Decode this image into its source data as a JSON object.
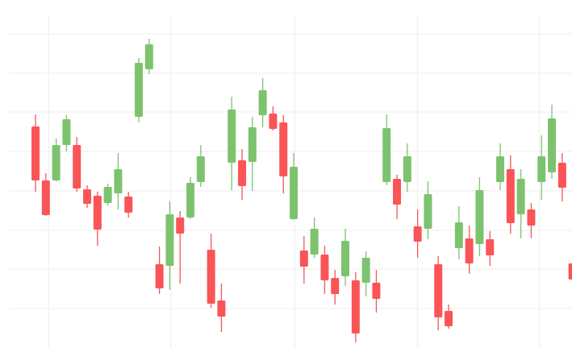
{
  "chart_data": {
    "type": "candlestick",
    "x": [
      0,
      1,
      2,
      3,
      4,
      5,
      6,
      7,
      8,
      9,
      10,
      11,
      12,
      13,
      14,
      15,
      16,
      17,
      18,
      19,
      20,
      21,
      22,
      23,
      24,
      25,
      26,
      27,
      28,
      29,
      30,
      31,
      32,
      33,
      34,
      35,
      36,
      37,
      38,
      39,
      40,
      41,
      42,
      43,
      44,
      45,
      46,
      47,
      48,
      49,
      50,
      51,
      52
    ],
    "open": [
      275,
      208,
      208,
      252,
      252,
      197,
      189,
      180,
      192,
      188,
      287,
      346,
      104,
      102,
      162,
      162,
      206,
      122,
      59,
      230,
      233,
      231,
      289,
      291,
      280,
      160,
      121,
      116,
      116,
      87,
      89,
      84,
      81,
      81,
      206,
      210,
      206,
      151,
      148,
      104,
      46,
      124,
      136,
      129,
      135,
      206,
      222,
      166,
      172,
      206,
      218,
      230,
      105
    ],
    "high": [
      290,
      217,
      260,
      289,
      262,
      202,
      194,
      204,
      242,
      194,
      360,
      384,
      126,
      182,
      170,
      212,
      252,
      142,
      80,
      312,
      247,
      287,
      335,
      300,
      289,
      242,
      139,
      162,
      127,
      97,
      148,
      94,
      120,
      97,
      290,
      215,
      254,
      172,
      207,
      114,
      54,
      176,
      152,
      212,
      145,
      254,
      239,
      222,
      180,
      264,
      302,
      242,
      110
    ],
    "low": [
      194,
      164,
      207,
      244,
      194,
      174,
      127,
      177,
      172,
      162,
      280,
      340,
      67,
      72,
      80,
      160,
      200,
      50,
      20,
      196,
      184,
      195,
      274,
      270,
      192,
      159,
      80,
      112,
      67,
      54,
      77,
      7,
      64,
      44,
      202,
      160,
      194,
      112,
      135,
      22,
      24,
      110,
      92,
      114,
      102,
      196,
      142,
      136,
      136,
      184,
      210,
      182,
      82
    ],
    "close": [
      208,
      165,
      252,
      284,
      198,
      179,
      147,
      200,
      222,
      168,
      354,
      377,
      74,
      166,
      142,
      205,
      238,
      55,
      39,
      296,
      201,
      274,
      320,
      272,
      213,
      225,
      101,
      148,
      84,
      67,
      133,
      18,
      112,
      61,
      273,
      178,
      238,
      132,
      191,
      38,
      27,
      156,
      105,
      196,
      115,
      238,
      155,
      210,
      152,
      238,
      285,
      199,
      85
    ],
    "up_color": "#7dc36f",
    "down_color": "#fa5457",
    "xlim": [
      -3.44,
      51.95
    ],
    "xticks": [
      1.25,
      13.1,
      25.1,
      37,
      48.8
    ],
    "ylim": [
      0,
      432
    ],
    "yticks": [
      49,
      98,
      146,
      195,
      244,
      293,
      341,
      390
    ],
    "grid": true
  }
}
